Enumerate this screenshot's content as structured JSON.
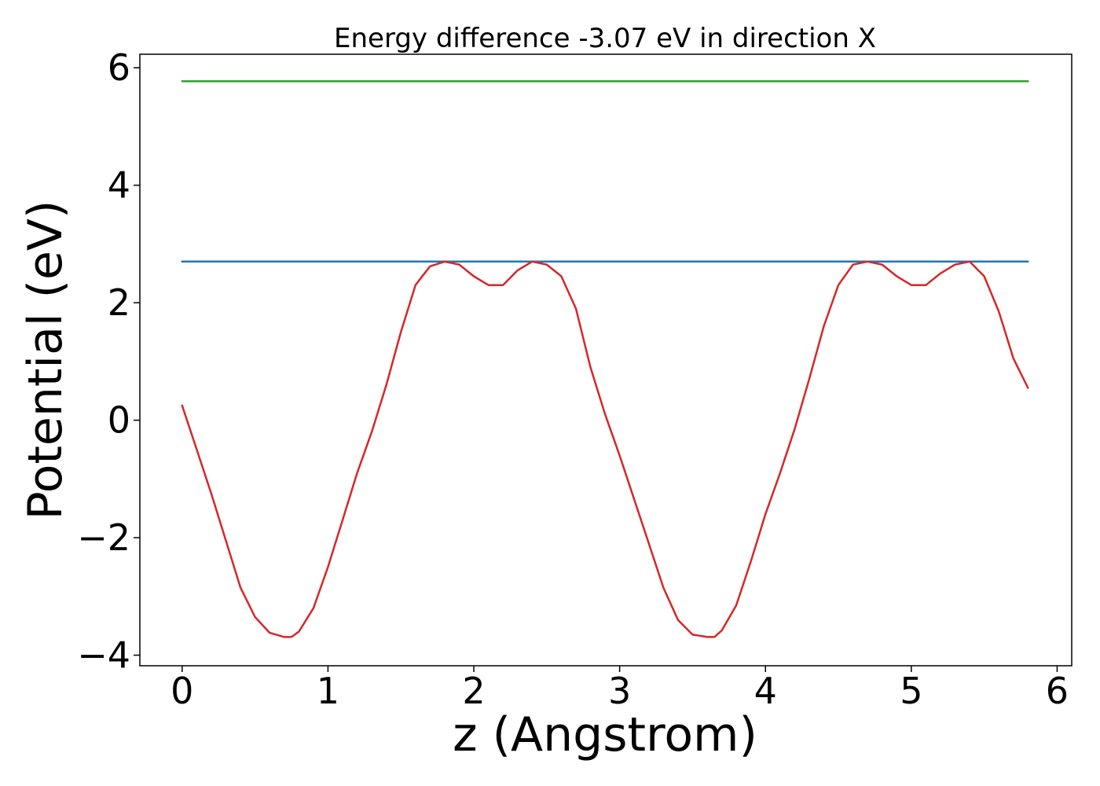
{
  "chart_data": {
    "type": "line",
    "title": "Energy difference -3.07 eV in direction X",
    "xlabel": "z (Angstrom)",
    "ylabel": "Potential (eV)",
    "xlim": [
      -0.29,
      6.1
    ],
    "ylim": [
      -4.18,
      6.23
    ],
    "xticks": [
      0,
      1,
      2,
      3,
      4,
      5,
      6
    ],
    "xtick_labels": [
      "0",
      "1",
      "2",
      "3",
      "4",
      "5",
      "6"
    ],
    "yticks": [
      -4,
      -2,
      0,
      2,
      4,
      6
    ],
    "ytick_labels": [
      "−4",
      "−2",
      "0",
      "2",
      "4",
      "6"
    ],
    "grid": false,
    "series": [
      {
        "color": "#2ca02c",
        "x": [
          0,
          5.8
        ],
        "y": [
          5.77,
          5.77
        ]
      },
      {
        "color": "#1f77b4",
        "x": [
          0,
          5.8
        ],
        "y": [
          2.7,
          2.7
        ]
      },
      {
        "color": "#d62728",
        "x": [
          0,
          0.1,
          0.2,
          0.3,
          0.4,
          0.5,
          0.6,
          0.7,
          0.75,
          0.8,
          0.9,
          1.0,
          1.1,
          1.2,
          1.3,
          1.4,
          1.5,
          1.6,
          1.7,
          1.8,
          1.9,
          2.0,
          2.1,
          2.2,
          2.3,
          2.4,
          2.5,
          2.6,
          2.7,
          2.8,
          2.9,
          3.0,
          3.1,
          3.2,
          3.3,
          3.4,
          3.5,
          3.6,
          3.65,
          3.7,
          3.8,
          3.9,
          4.0,
          4.1,
          4.2,
          4.3,
          4.4,
          4.5,
          4.6,
          4.7,
          4.8,
          4.9,
          5.0,
          5.1,
          5.2,
          5.3,
          5.4,
          5.5,
          5.6,
          5.7,
          5.8
        ],
        "y": [
          0.25,
          -0.5,
          -1.25,
          -2.05,
          -2.85,
          -3.35,
          -3.62,
          -3.69,
          -3.69,
          -3.6,
          -3.2,
          -2.5,
          -1.7,
          -0.9,
          -0.2,
          0.6,
          1.5,
          2.3,
          2.62,
          2.7,
          2.65,
          2.45,
          2.3,
          2.3,
          2.55,
          2.7,
          2.65,
          2.45,
          1.9,
          0.9,
          0.1,
          -0.6,
          -1.35,
          -2.1,
          -2.85,
          -3.4,
          -3.65,
          -3.69,
          -3.69,
          -3.58,
          -3.15,
          -2.4,
          -1.6,
          -0.9,
          -0.15,
          0.7,
          1.6,
          2.3,
          2.65,
          2.7,
          2.65,
          2.45,
          2.3,
          2.3,
          2.5,
          2.65,
          2.7,
          2.45,
          1.85,
          1.05,
          0.55
        ]
      }
    ]
  }
}
